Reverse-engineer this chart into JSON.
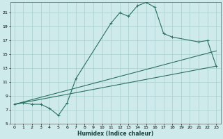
{
  "xlabel": "Humidex (Indice chaleur)",
  "bg_color": "#ceeaea",
  "grid_color": "#aacece",
  "line_color": "#2a7060",
  "xlim": [
    -0.5,
    23.5
  ],
  "ylim": [
    5,
    22.5
  ],
  "xticks": [
    0,
    1,
    2,
    3,
    4,
    5,
    6,
    7,
    8,
    9,
    10,
    11,
    12,
    13,
    14,
    15,
    16,
    17,
    18,
    19,
    20,
    21,
    22,
    23
  ],
  "yticks": [
    5,
    7,
    9,
    11,
    13,
    15,
    17,
    19,
    21
  ],
  "line1_x": [
    0,
    1,
    2,
    3,
    4,
    5,
    6,
    7,
    11,
    12,
    13,
    14,
    15,
    16,
    17,
    18,
    21,
    22,
    23
  ],
  "line1_y": [
    7.8,
    8.0,
    7.8,
    7.8,
    7.2,
    6.2,
    8.0,
    11.5,
    19.5,
    21.0,
    20.5,
    22.0,
    22.5,
    21.8,
    18.0,
    17.5,
    16.8,
    17.0,
    13.3
  ],
  "line3_x": [
    0,
    23
  ],
  "line3_y": [
    7.8,
    15.5
  ],
  "line4_x": [
    0,
    23
  ],
  "line4_y": [
    7.8,
    13.3
  ],
  "marker": "+"
}
